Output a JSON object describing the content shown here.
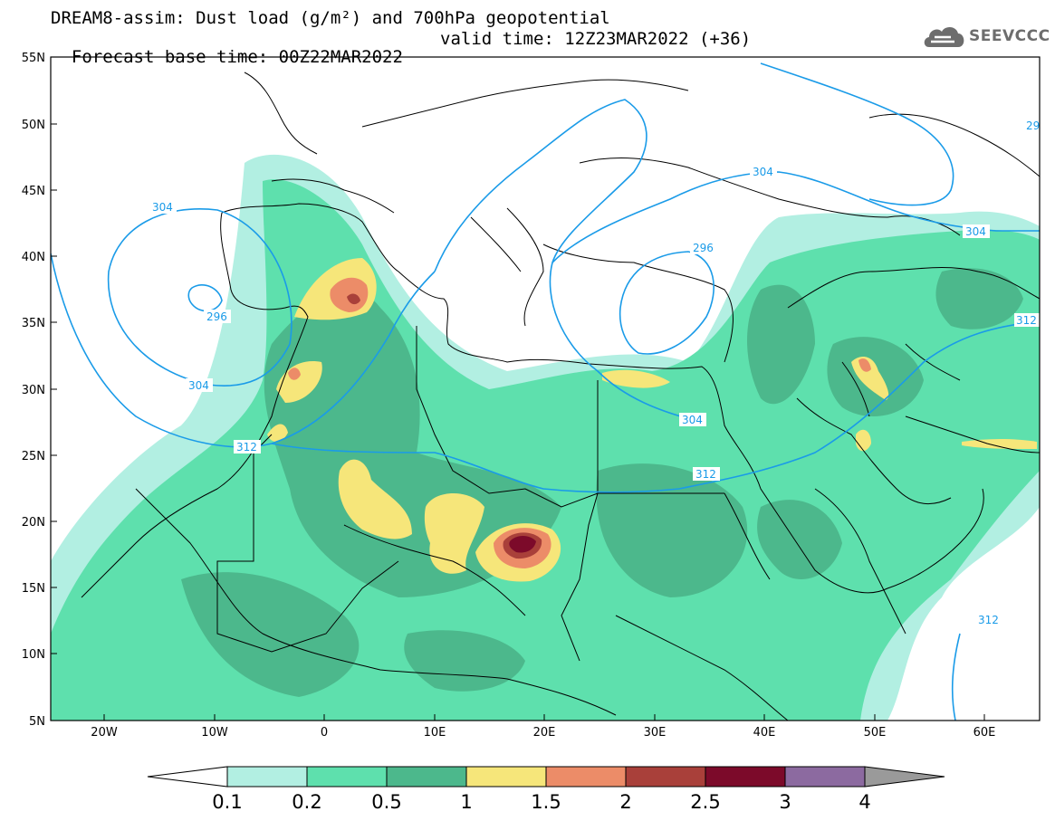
{
  "header": {
    "title_line1": "DREAM8-assim: Dust load (g/m²) and 700hPa geopotential",
    "base_time": "Forecast base time: 00Z22MAR2022",
    "valid_time": "valid time: 12Z23MAR2022 (+36)"
  },
  "logo": {
    "text": "SEEVCCC",
    "icon": "cloud-icon"
  },
  "map": {
    "lon_labels": [
      "20W",
      "10W",
      "0",
      "10E",
      "20E",
      "30E",
      "40E",
      "50E",
      "60E"
    ],
    "lat_labels": [
      "55N",
      "50N",
      "45N",
      "40N",
      "35N",
      "30N",
      "25N",
      "20N",
      "15N",
      "10N",
      "5N"
    ],
    "contour_labels": [
      "304",
      "296",
      "304",
      "312",
      "304",
      "296",
      "304",
      "304",
      "312",
      "312",
      "312",
      "29"
    ]
  },
  "colorbar": {
    "labels": [
      "0.1",
      "0.2",
      "0.5",
      "1",
      "1.5",
      "2",
      "2.5",
      "3",
      "4"
    ],
    "colors": [
      "#ffffff",
      "#b2efe2",
      "#5ee0ad",
      "#4cb88c",
      "#f6e67a",
      "#ec8c68",
      "#a9403a",
      "#7c0a2a",
      "#8c6aa0",
      "#9a9a9a"
    ]
  }
}
